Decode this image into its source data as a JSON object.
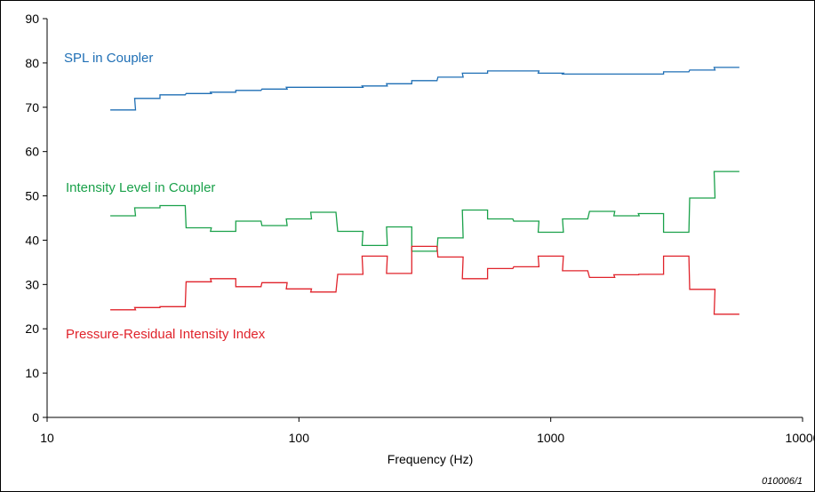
{
  "chart_data": {
    "type": "line",
    "xscale": "log",
    "xlabel": "Frequency (Hz)",
    "ylabel": "",
    "xlim": [
      10,
      10000
    ],
    "ylim": [
      0,
      90
    ],
    "grid": false,
    "x_ticks": [
      10,
      100,
      1000,
      10000
    ],
    "y_ticks": [
      0,
      10,
      20,
      30,
      40,
      50,
      60,
      70,
      80,
      90
    ],
    "x_tick_labels": [
      "10",
      "100",
      "1000",
      "10000"
    ],
    "y_tick_labels": [
      "0",
      "10",
      "20",
      "30",
      "40",
      "50",
      "60",
      "70",
      "80",
      "90"
    ],
    "band_centers": [
      20,
      25,
      31.5,
      40,
      50,
      63,
      80,
      100,
      125,
      160,
      200,
      250,
      315,
      400,
      500,
      630,
      800,
      1000,
      1250,
      1600,
      2000,
      2500,
      3150,
      4000,
      5000
    ],
    "series": [
      {
        "name": "SPL in Coupler",
        "color": "#1f6fb5",
        "values": [
          69.4,
          72.0,
          72.8,
          73.1,
          73.4,
          73.8,
          74.1,
          74.5,
          74.5,
          74.5,
          74.8,
          75.3,
          76.0,
          76.8,
          77.7,
          78.2,
          78.2,
          77.7,
          77.5,
          77.5,
          77.5,
          77.5,
          78.0,
          78.4,
          79.0
        ]
      },
      {
        "name": "Intensity Level in Coupler",
        "color": "#1aa14a",
        "values": [
          45.5,
          47.3,
          47.8,
          42.8,
          42.0,
          44.3,
          43.3,
          44.8,
          46.3,
          42.0,
          38.8,
          43.0,
          37.5,
          40.5,
          46.8,
          44.8,
          44.3,
          41.8,
          44.8,
          46.5,
          45.5,
          46.0,
          41.8,
          49.5,
          55.5
        ]
      },
      {
        "name": "Pressure-Residual Intensity Index",
        "color": "#e0232b",
        "values": [
          24.3,
          24.8,
          25.0,
          30.6,
          31.3,
          29.5,
          30.4,
          29.0,
          28.3,
          32.3,
          36.4,
          32.5,
          38.6,
          36.2,
          31.3,
          33.6,
          34.0,
          36.4,
          33.1,
          31.6,
          32.2,
          32.3,
          36.4,
          28.9,
          23.3
        ]
      }
    ],
    "figure_id": "010006/1"
  }
}
